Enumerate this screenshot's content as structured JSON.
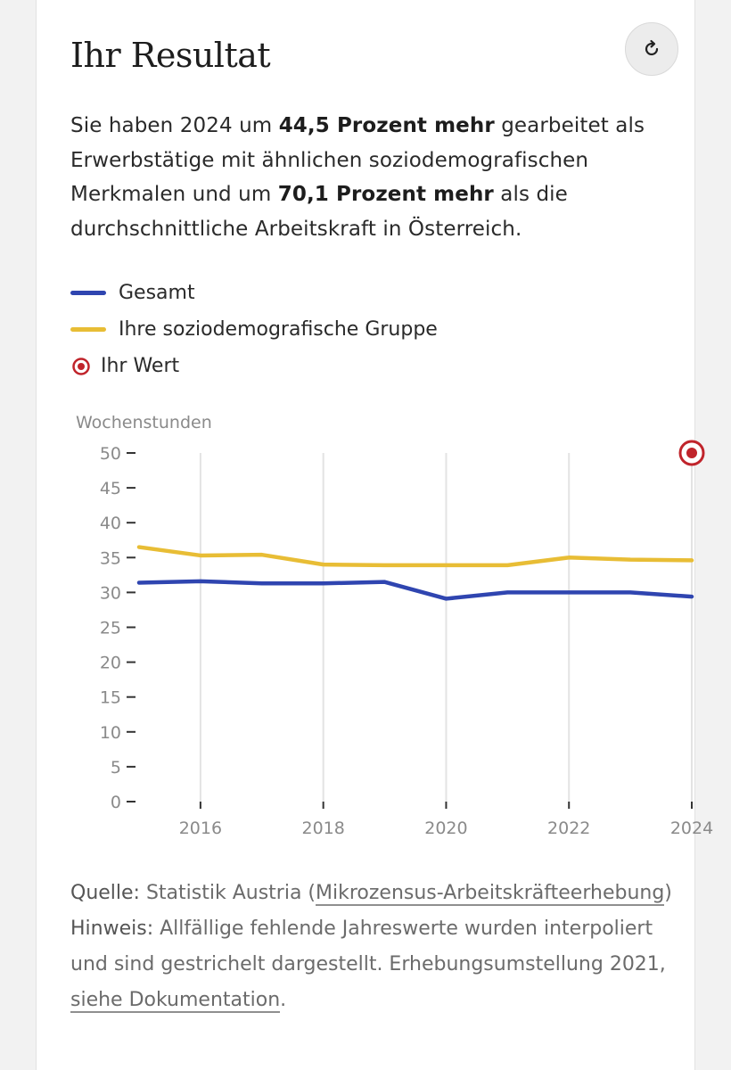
{
  "header": {
    "title": "Ihr Resultat",
    "reload_icon": "reload-icon"
  },
  "summary": {
    "part1": "Sie haben 2024 um ",
    "highlight1": "44,5 Prozent mehr",
    "part2": " gearbeitet als Erwerbstätige mit ähnlichen soziodemografischen Merkmalen und um ",
    "highlight2": "70,1 Prozent mehr",
    "part3": " als die durchschnittliche Arbeitskraft in Österreich."
  },
  "legend": {
    "items": [
      {
        "label": "Gesamt",
        "color": "#2f45b0"
      },
      {
        "label": "Ihre soziodemografische Gruppe",
        "color": "#e8bd35"
      },
      {
        "label": "Ihr Wert",
        "color": "#c0242b"
      }
    ]
  },
  "chart_data": {
    "type": "line",
    "ylabel": "Wochenstunden",
    "xlabel": "",
    "x": [
      2015,
      2016,
      2017,
      2018,
      2019,
      2020,
      2021,
      2022,
      2023,
      2024
    ],
    "xlim": [
      2015,
      2024
    ],
    "ylim": [
      0,
      50
    ],
    "x_ticks": [
      2016,
      2018,
      2020,
      2022,
      2024
    ],
    "y_ticks": [
      0,
      5,
      10,
      15,
      20,
      25,
      30,
      35,
      40,
      45,
      50
    ],
    "grid": "vertical",
    "series": [
      {
        "name": "Gesamt",
        "color": "#2f45b0",
        "values": [
          31.4,
          31.6,
          31.3,
          31.3,
          31.5,
          29.1,
          30.0,
          30.0,
          30.0,
          29.4
        ]
      },
      {
        "name": "Ihre soziodemografische Gruppe",
        "color": "#e8bd35",
        "values": [
          36.5,
          35.3,
          35.4,
          34.0,
          33.9,
          33.9,
          33.9,
          35.0,
          34.7,
          34.6
        ]
      }
    ],
    "points": [
      {
        "name": "Ihr Wert",
        "x": 2024,
        "y": 50,
        "color": "#c0242b"
      }
    ]
  },
  "footer": {
    "source_label": "Quelle:",
    "source_text": " Statistik Austria (",
    "source_link": "Mikrozensus-Arbeitskräfteerhebung",
    "source_end": ")",
    "note_label": "Hinweis:",
    "note_text": " Allfällige fehlende Jahreswerte wurden interpoliert und sind gestrichelt dargestellt. Erhebungsumstellung 2021, ",
    "note_link": "siehe Dokumentation",
    "note_end": "."
  }
}
